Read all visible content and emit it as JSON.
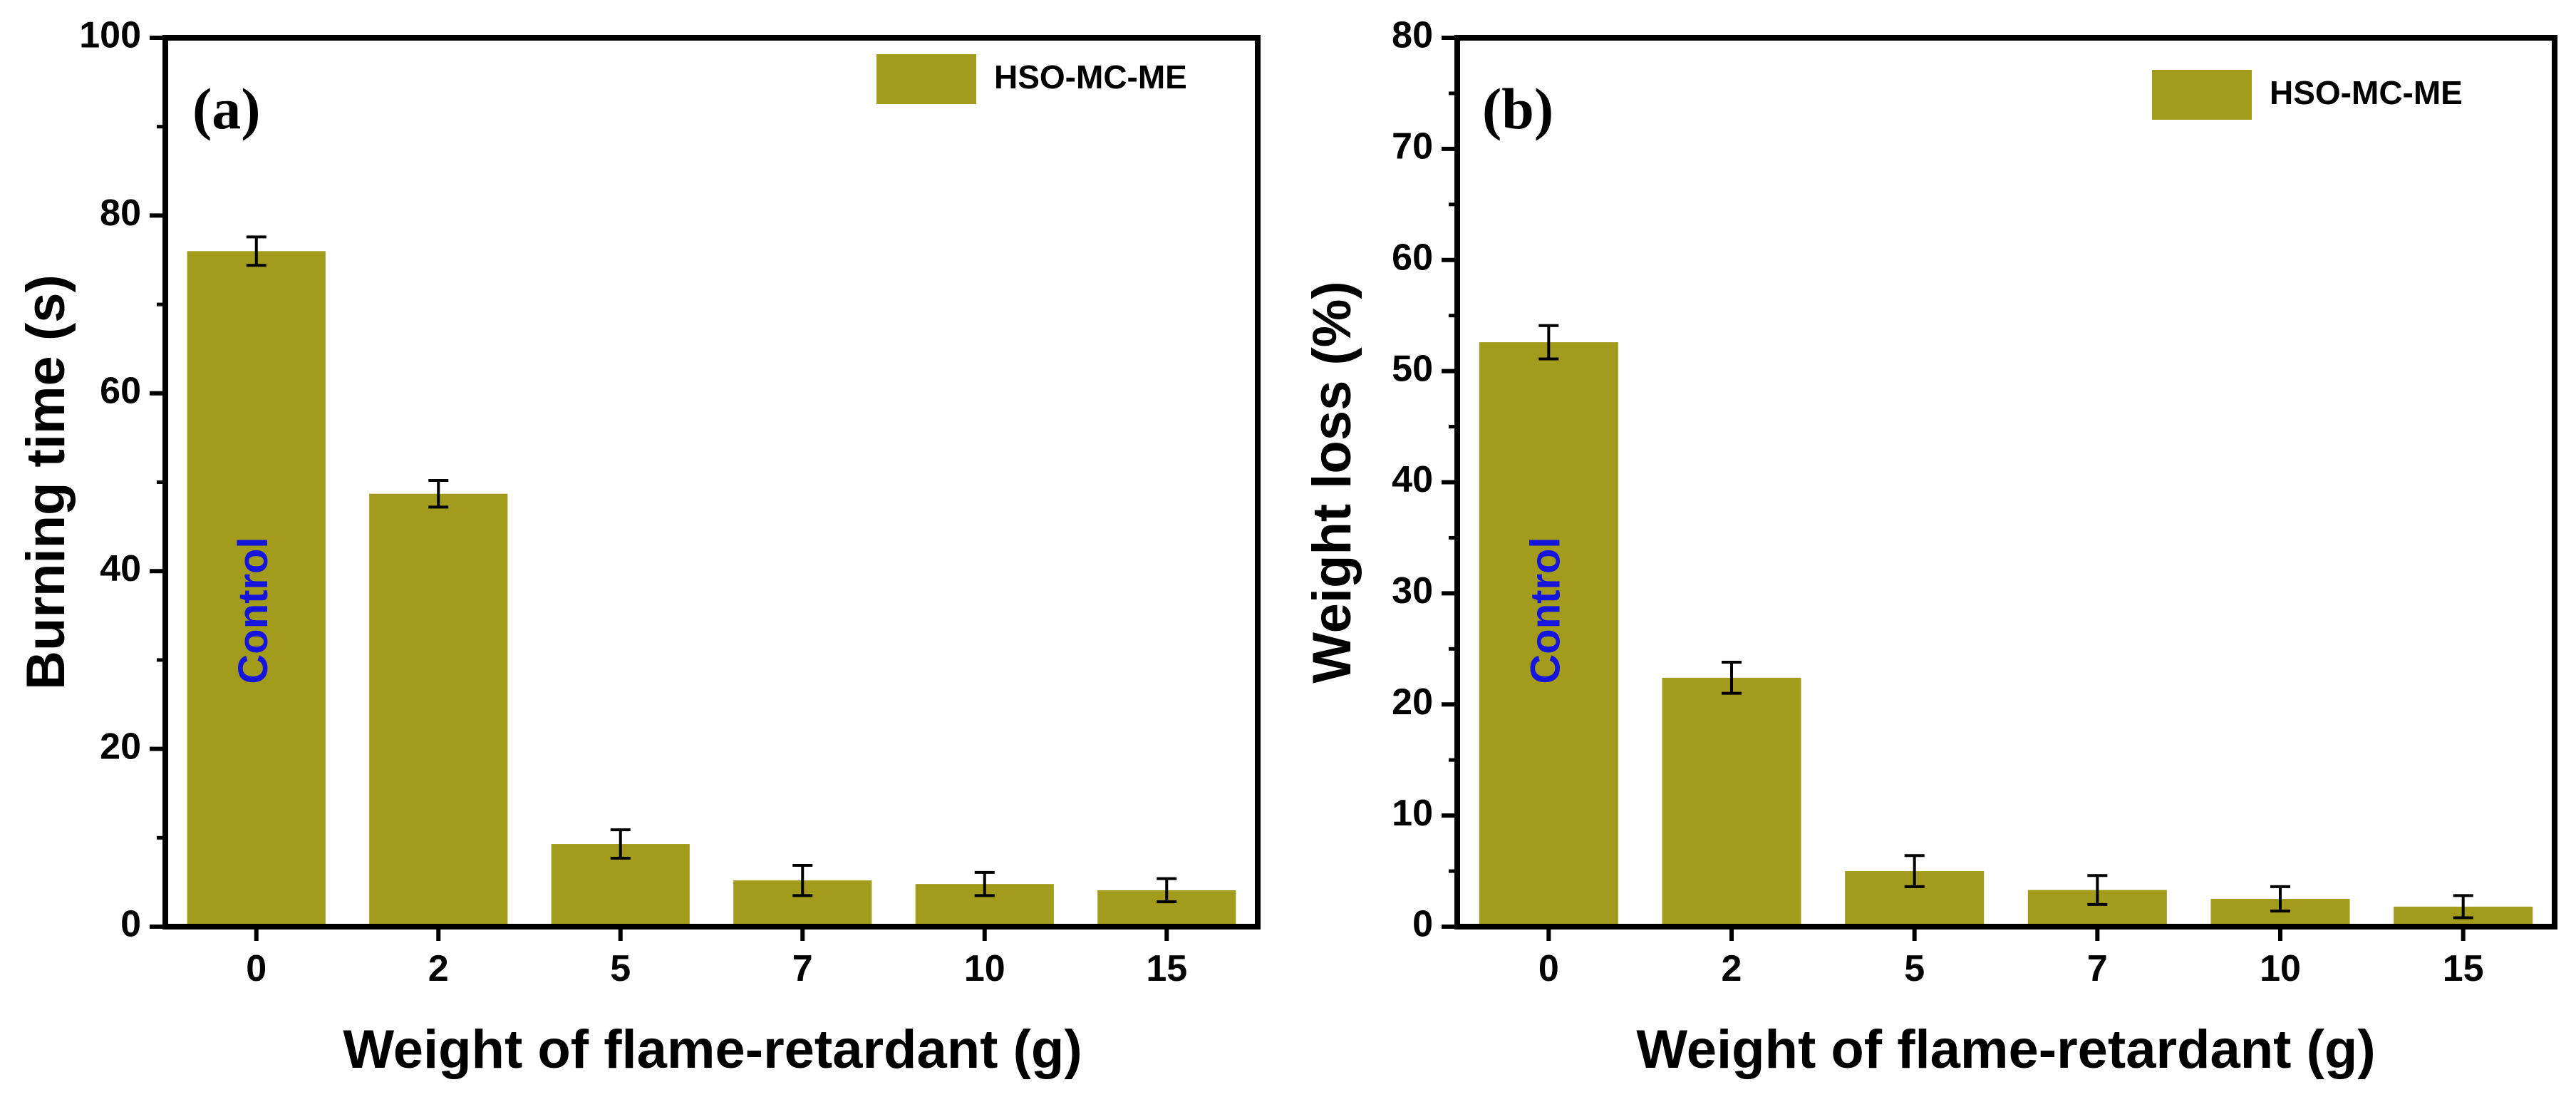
{
  "chart_data": [
    {
      "type": "bar",
      "panel_label": "(a)",
      "categories": [
        "0",
        "2",
        "5",
        "7",
        "10",
        "15"
      ],
      "series": [
        {
          "name": "HSO-MC-ME",
          "values": [
            76,
            48.7,
            9.3,
            5.2,
            4.8,
            4.1
          ],
          "errors": [
            1.6,
            1.5,
            1.6,
            1.7,
            1.3,
            1.3
          ]
        }
      ],
      "bar_annotation": {
        "category_index": 0,
        "text": "Control"
      },
      "xlabel": "Weight of flame-retardant (g)",
      "ylabel": "Burning time (s)",
      "ylim": [
        0,
        100
      ],
      "yticks": [
        0,
        20,
        40,
        60,
        80,
        100
      ],
      "grid": false,
      "legend": "top-right"
    },
    {
      "type": "bar",
      "panel_label": "(b)",
      "categories": [
        "0",
        "2",
        "5",
        "7",
        "10",
        "15"
      ],
      "series": [
        {
          "name": "HSO-MC-ME",
          "values": [
            52.6,
            22.4,
            5.0,
            3.3,
            2.5,
            1.8
          ],
          "errors": [
            1.5,
            1.4,
            1.4,
            1.3,
            1.1,
            1.0
          ]
        }
      ],
      "bar_annotation": {
        "category_index": 0,
        "text": "Control"
      },
      "xlabel": "Weight of flame-retardant (g)",
      "ylabel": "Weight loss (%)",
      "ylim": [
        0,
        80
      ],
      "yticks": [
        0,
        10,
        20,
        30,
        40,
        50,
        60,
        70,
        80
      ],
      "grid": false,
      "legend": "top-right"
    }
  ],
  "colors": {
    "bar": "#a39b1c",
    "annotation": "#1515dd",
    "axis": "#000000"
  }
}
